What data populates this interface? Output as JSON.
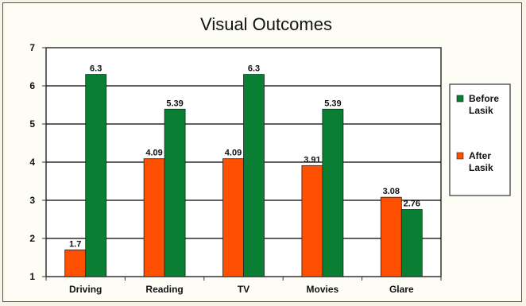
{
  "chart_data": {
    "type": "bar",
    "title": "Visual Outcomes",
    "categories": [
      "Driving",
      "Reading",
      "TV",
      "Movies",
      "Glare"
    ],
    "series": [
      {
        "name": "After Lasik",
        "name_lines": [
          "After",
          "Lasik"
        ],
        "color": "#ff4f00",
        "values": [
          1.7,
          4.09,
          4.09,
          3.91,
          3.08
        ],
        "labels": [
          "1.7",
          "4.09",
          "4.09",
          "3.91",
          "3.08"
        ]
      },
      {
        "name": "Before Lasik",
        "name_lines": [
          "Before",
          "Lasik"
        ],
        "color": "#0a7f33",
        "values": [
          6.3,
          5.39,
          6.3,
          5.39,
          2.76
        ],
        "labels": [
          "6.3",
          "5.39",
          "6.3",
          "5.39",
          "2.76"
        ]
      }
    ],
    "legend_order": [
      1,
      0
    ],
    "ylim": [
      1,
      7
    ],
    "yticks": [
      1,
      2,
      3,
      4,
      5,
      6,
      7
    ],
    "grid": true,
    "legend_position": "right",
    "xlabel": "",
    "ylabel": ""
  }
}
